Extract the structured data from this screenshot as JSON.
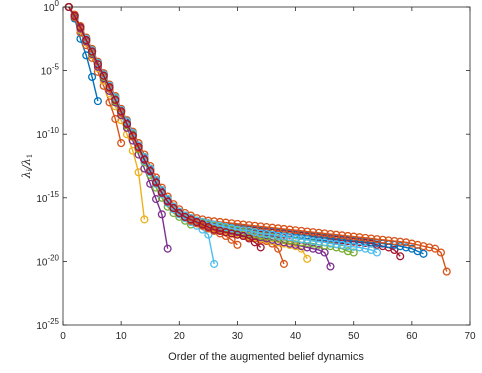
{
  "chart_data": {
    "type": "line",
    "title": "",
    "xlabel": "Order of the augmented belief dynamics",
    "ylabel": {
      "prefix": "λ",
      "prefix_sub": "i",
      "sep": "/λ",
      "sep_sub": "1"
    },
    "xlim": [
      0,
      70
    ],
    "ylim": [
      1e-25,
      1
    ],
    "yscale": "log",
    "grid": false,
    "legend": "none",
    "xticks": [
      0,
      10,
      20,
      30,
      40,
      50,
      60,
      70
    ],
    "xtick_labels": [
      "0",
      "10",
      "20",
      "30",
      "40",
      "50",
      "60",
      "70"
    ],
    "yticks_exp": [
      0,
      -5,
      -10,
      -15,
      -20,
      -25
    ],
    "ytick_labels": [
      {
        "base": "10",
        "exp": "0"
      },
      {
        "base": "10",
        "exp": "-5"
      },
      {
        "base": "10",
        "exp": "-10"
      },
      {
        "base": "10",
        "exp": "-15"
      },
      {
        "base": "10",
        "exp": "-20"
      },
      {
        "base": "10",
        "exp": "-25"
      }
    ],
    "colors": [
      "#0072BD",
      "#D95319",
      "#EDB120",
      "#7E2F8E",
      "#77AC30",
      "#4DBEEE",
      "#A2142F"
    ],
    "series": [
      {
        "color": "#0072BD",
        "final_order": 6,
        "log10_values": [
          0,
          -0.9,
          -2.5,
          -3.8,
          -5.5,
          -7.4
        ]
      },
      {
        "color": "#D95319",
        "final_order": 10,
        "log10_values": [
          0,
          -0.8,
          -2.0,
          -3.0,
          -4.0,
          -5.1,
          -6.2,
          -7.5,
          -8.8,
          -10.7
        ]
      },
      {
        "color": "#EDB120",
        "final_order": 14,
        "log10_values": [
          0,
          -0.7,
          -1.8,
          -2.8,
          -3.8,
          -4.8,
          -5.8,
          -6.8,
          -7.8,
          -8.9,
          -10.0,
          -11.3,
          -13.0,
          -16.7
        ]
      },
      {
        "color": "#7E2F8E",
        "final_order": 18,
        "log10_values": [
          0,
          -0.7,
          -1.7,
          -2.7,
          -3.7,
          -4.7,
          -5.6,
          -6.6,
          -7.5,
          -8.5,
          -9.5,
          -10.5,
          -11.6,
          -12.7,
          -13.9,
          -15.1,
          -16.3,
          -19.0
        ]
      },
      {
        "color": "#77AC30",
        "final_order": 22,
        "log10_values": [
          0,
          -0.7,
          -1.6,
          -2.6,
          -3.6,
          -4.5,
          -5.5,
          -6.4,
          -7.4,
          -8.3,
          -9.3,
          -10.2,
          -11.2,
          -12.2,
          -13.2,
          -14.2,
          -15.0,
          -15.7,
          -16.2,
          -16.5,
          -16.8,
          -17.1
        ]
      },
      {
        "color": "#4DBEEE",
        "final_order": 26,
        "log10_values": [
          0,
          -0.7,
          -1.6,
          -2.6,
          -3.5,
          -4.5,
          -5.4,
          -6.4,
          -7.3,
          -8.3,
          -9.2,
          -10.2,
          -11.1,
          -12.1,
          -13.0,
          -13.9,
          -14.7,
          -15.4,
          -15.9,
          -16.3,
          -16.6,
          -16.9,
          -17.2,
          -17.5,
          -17.9,
          -20.2
        ]
      },
      {
        "color": "#A2142F",
        "final_order": 58,
        "log10_values": [
          0,
          -0.7,
          -1.6,
          -2.5,
          -3.5,
          -4.4,
          -5.4,
          -6.3,
          -7.2,
          -8.2,
          -9.1,
          -10.0,
          -11.0,
          -11.9,
          -12.8,
          -13.7,
          -14.5,
          -15.2,
          -15.8,
          -16.2,
          -16.5,
          -16.7,
          -16.9,
          -17.0,
          -17.1,
          -17.2,
          -17.3,
          -17.35,
          -17.4,
          -17.45,
          -17.5,
          -17.55,
          -17.6,
          -17.65,
          -17.7,
          -17.75,
          -17.8,
          -17.85,
          -17.9,
          -17.95,
          -18.0,
          -18.05,
          -18.1,
          -18.15,
          -18.2,
          -18.25,
          -18.3,
          -18.35,
          -18.4,
          -18.45,
          -18.5,
          -18.55,
          -18.6,
          -18.7,
          -18.8,
          -18.9,
          -19.1,
          -19.6
        ]
      },
      {
        "color": "#0072BD",
        "final_order": 62,
        "log10_values": [
          0,
          -0.7,
          -1.6,
          -2.5,
          -3.4,
          -4.4,
          -5.3,
          -6.2,
          -7.2,
          -8.1,
          -9.0,
          -9.9,
          -10.9,
          -11.8,
          -12.7,
          -13.6,
          -14.4,
          -15.1,
          -15.7,
          -16.1,
          -16.4,
          -16.6,
          -16.8,
          -16.9,
          -17.0,
          -17.1,
          -17.2,
          -17.25,
          -17.3,
          -17.35,
          -17.4,
          -17.45,
          -17.5,
          -17.55,
          -17.6,
          -17.65,
          -17.7,
          -17.75,
          -17.8,
          -17.85,
          -17.9,
          -17.95,
          -18.0,
          -18.05,
          -18.1,
          -18.15,
          -18.2,
          -18.25,
          -18.3,
          -18.35,
          -18.4,
          -18.45,
          -18.5,
          -18.55,
          -18.6,
          -18.65,
          -18.7,
          -18.8,
          -18.9,
          -19.0,
          -19.2,
          -19.4
        ]
      },
      {
        "color": "#D95319",
        "final_order": 66,
        "log10_values": [
          0,
          -0.6,
          -1.5,
          -2.4,
          -3.3,
          -4.3,
          -5.2,
          -6.1,
          -7.0,
          -8.0,
          -8.9,
          -9.8,
          -10.7,
          -11.6,
          -12.5,
          -13.4,
          -14.2,
          -14.9,
          -15.5,
          -15.9,
          -16.2,
          -16.4,
          -16.6,
          -16.7,
          -16.8,
          -16.85,
          -16.9,
          -16.95,
          -17.0,
          -17.05,
          -17.1,
          -17.15,
          -17.2,
          -17.25,
          -17.3,
          -17.35,
          -17.4,
          -17.45,
          -17.5,
          -17.55,
          -17.6,
          -17.65,
          -17.7,
          -17.75,
          -17.8,
          -17.85,
          -17.9,
          -17.95,
          -18.0,
          -18.05,
          -18.1,
          -18.15,
          -18.2,
          -18.25,
          -18.3,
          -18.35,
          -18.4,
          -18.45,
          -18.5,
          -18.6,
          -18.7,
          -18.8,
          -18.9,
          -19.0,
          -19.3,
          -20.8
        ]
      },
      {
        "color": "#D95319",
        "final_order": 38,
        "log10_values": [
          0,
          -0.7,
          -1.6,
          -2.6,
          -3.5,
          -4.5,
          -5.4,
          -6.4,
          -7.3,
          -8.2,
          -9.2,
          -10.1,
          -11.1,
          -12.0,
          -12.9,
          -13.8,
          -14.6,
          -15.3,
          -15.8,
          -16.2,
          -16.5,
          -16.8,
          -17.0,
          -17.2,
          -17.4,
          -17.5,
          -17.6,
          -17.7,
          -17.8,
          -17.9,
          -18.0,
          -18.1,
          -18.2,
          -18.3,
          -18.4,
          -18.6,
          -19.0,
          -20.2
        ]
      },
      {
        "color": "#EDB120",
        "final_order": 42,
        "log10_values": [
          0,
          -0.7,
          -1.6,
          -2.6,
          -3.5,
          -4.4,
          -5.4,
          -6.3,
          -7.3,
          -8.2,
          -9.1,
          -10.1,
          -11.0,
          -11.9,
          -12.8,
          -13.7,
          -14.5,
          -15.2,
          -15.8,
          -16.2,
          -16.5,
          -16.7,
          -16.9,
          -17.1,
          -17.3,
          -17.4,
          -17.5,
          -17.6,
          -17.7,
          -17.8,
          -17.9,
          -18.0,
          -18.1,
          -18.2,
          -18.3,
          -18.4,
          -18.5,
          -18.6,
          -18.7,
          -18.8,
          -19.0,
          -19.8
        ]
      },
      {
        "color": "#7E2F8E",
        "final_order": 46,
        "log10_values": [
          0,
          -0.7,
          -1.6,
          -2.5,
          -3.5,
          -4.4,
          -5.3,
          -6.3,
          -7.2,
          -8.2,
          -9.1,
          -10.0,
          -10.9,
          -11.9,
          -12.8,
          -13.7,
          -14.5,
          -15.2,
          -15.8,
          -16.2,
          -16.5,
          -16.7,
          -16.9,
          -17.1,
          -17.2,
          -17.3,
          -17.4,
          -17.5,
          -17.6,
          -17.7,
          -17.8,
          -17.9,
          -18.0,
          -18.1,
          -18.2,
          -18.3,
          -18.4,
          -18.5,
          -18.6,
          -18.7,
          -18.8,
          -18.9,
          -19.0,
          -19.1,
          -19.3,
          -20.4
        ]
      },
      {
        "color": "#77AC30",
        "final_order": 50,
        "log10_values": [
          0,
          -0.7,
          -1.6,
          -2.5,
          -3.4,
          -4.4,
          -5.3,
          -6.2,
          -7.2,
          -8.1,
          -9.0,
          -10.0,
          -10.9,
          -11.8,
          -12.7,
          -13.6,
          -14.4,
          -15.1,
          -15.7,
          -16.1,
          -16.4,
          -16.6,
          -16.8,
          -16.95,
          -17.1,
          -17.2,
          -17.3,
          -17.4,
          -17.5,
          -17.6,
          -17.7,
          -17.8,
          -17.9,
          -18.0,
          -18.05,
          -18.1,
          -18.2,
          -18.3,
          -18.35,
          -18.4,
          -18.5,
          -18.55,
          -18.6,
          -18.7,
          -18.75,
          -18.8,
          -18.9,
          -19.0,
          -19.2,
          -19.3
        ]
      },
      {
        "color": "#4DBEEE",
        "final_order": 54,
        "log10_values": [
          0,
          -0.7,
          -1.6,
          -2.5,
          -3.4,
          -4.4,
          -5.3,
          -6.2,
          -7.1,
          -8.1,
          -9.0,
          -9.9,
          -10.9,
          -11.8,
          -12.7,
          -13.6,
          -14.4,
          -15.1,
          -15.7,
          -16.1,
          -16.4,
          -16.6,
          -16.8,
          -16.9,
          -17.0,
          -17.1,
          -17.2,
          -17.3,
          -17.4,
          -17.5,
          -17.55,
          -17.6,
          -17.7,
          -17.8,
          -17.85,
          -17.9,
          -18.0,
          -18.05,
          -18.1,
          -18.2,
          -18.25,
          -18.3,
          -18.4,
          -18.45,
          -18.5,
          -18.6,
          -18.65,
          -18.7,
          -18.8,
          -18.85,
          -18.9,
          -19.0,
          -19.1,
          -19.3
        ]
      },
      {
        "color": "#D95319",
        "final_order": 30,
        "log10_values": [
          0,
          -0.7,
          -1.6,
          -2.6,
          -3.5,
          -4.5,
          -5.4,
          -6.4,
          -7.3,
          -8.3,
          -9.2,
          -10.2,
          -11.1,
          -12.0,
          -12.9,
          -13.8,
          -14.6,
          -15.3,
          -15.8,
          -16.2,
          -16.5,
          -16.8,
          -17.0,
          -17.2,
          -17.4,
          -17.6,
          -17.8,
          -18.0,
          -18.3,
          -18.7
        ]
      },
      {
        "color": "#A2142F",
        "final_order": 34,
        "log10_values": [
          0,
          -0.7,
          -1.6,
          -2.6,
          -3.5,
          -4.5,
          -5.4,
          -6.3,
          -7.3,
          -8.2,
          -9.2,
          -10.1,
          -11.0,
          -12.0,
          -12.9,
          -13.8,
          -14.6,
          -15.3,
          -15.8,
          -16.2,
          -16.5,
          -16.7,
          -16.9,
          -17.1,
          -17.3,
          -17.5,
          -17.6,
          -17.7,
          -17.8,
          -17.9,
          -18.0,
          -18.2,
          -18.5,
          -18.9
        ]
      }
    ]
  }
}
